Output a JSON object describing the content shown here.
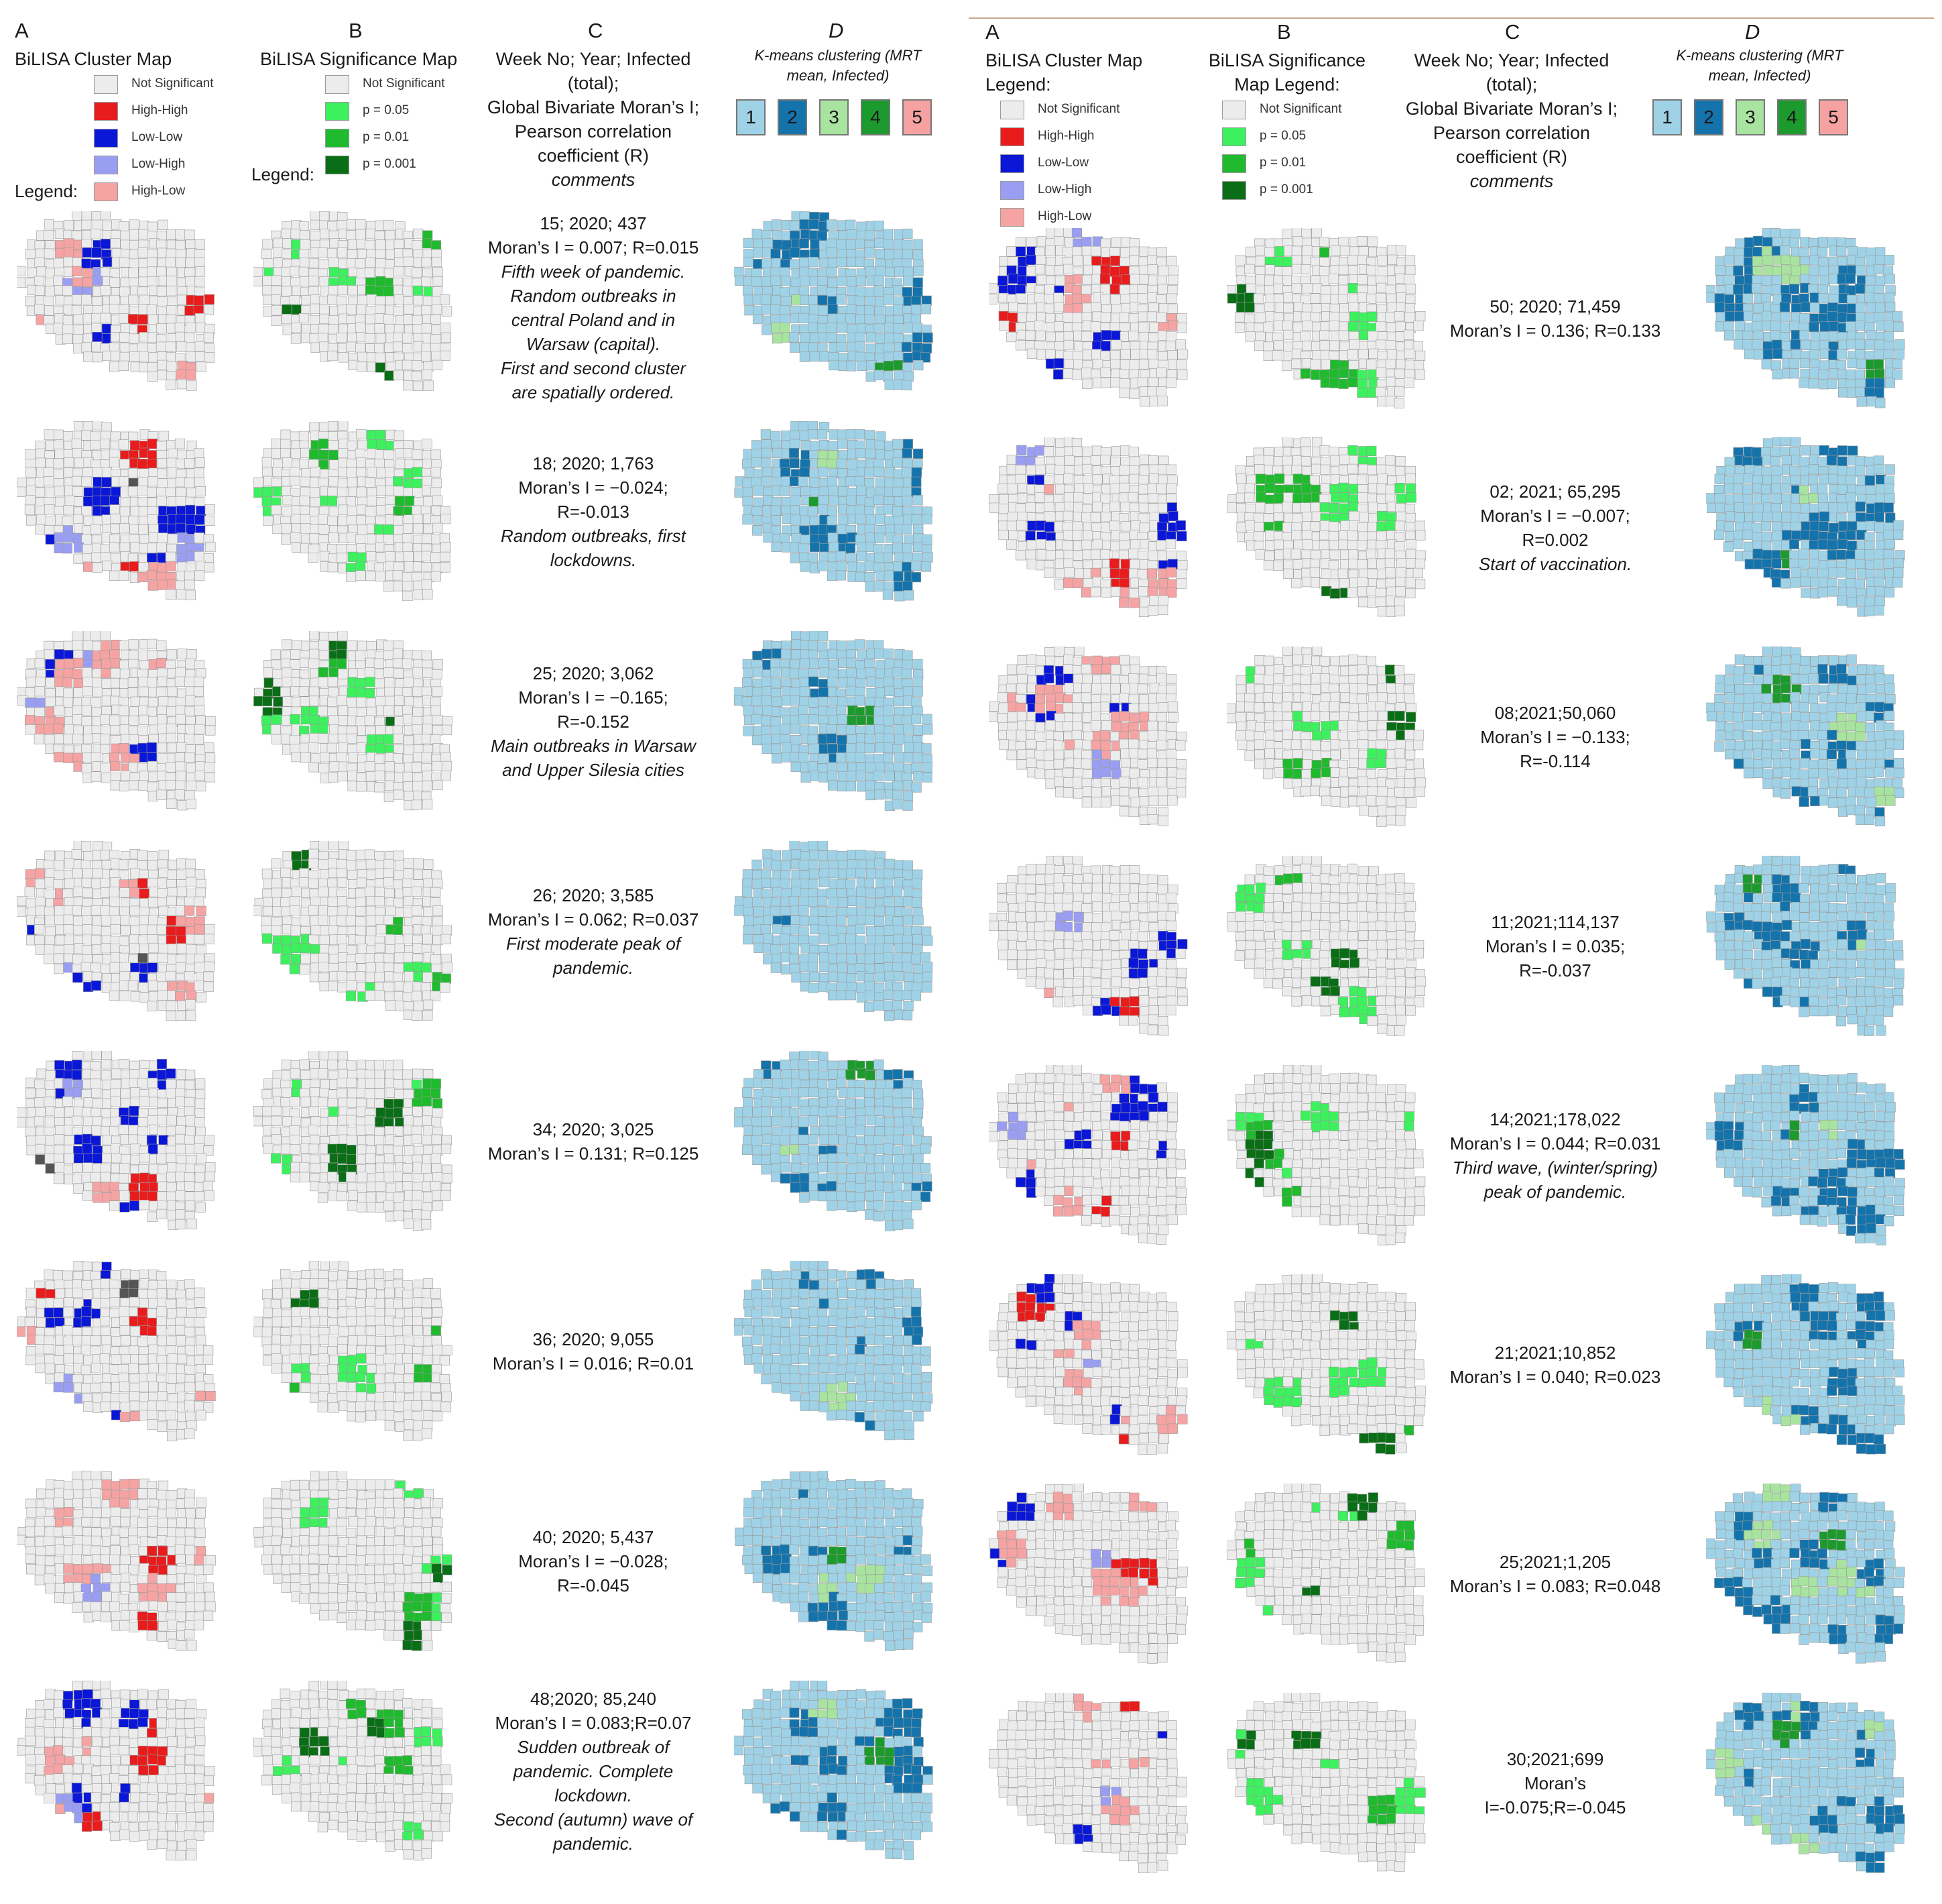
{
  "colors": {
    "not_significant": "#ececec",
    "high_high": "#e81c1c",
    "low_low": "#0b17d6",
    "low_high": "#9a9ef2",
    "high_low": "#f5a3a3",
    "p005": "#3df05e",
    "p001": "#1fba2d",
    "p0001": "#0a6e17",
    "k1": "#9fd2e6",
    "k2": "#1573ab",
    "k3": "#a9e3a0",
    "k4": "#1d9a2e",
    "k5": "#f6a2a2",
    "border": "#9a9a9a",
    "rule": "#c9a88e"
  },
  "left": {
    "headers": {
      "a_letter": "A",
      "a_title": "BiLISA Cluster Map",
      "b_letter": "B",
      "b_title": "BiLISA Significance Map",
      "c_letter": "C",
      "c_title": [
        "Week No; Year; Infected",
        "(total);",
        "Global Bivariate Moran’s I;",
        "Pearson correlation",
        "coefficient (R)"
      ],
      "c_comments": "comments",
      "d_letter": "D",
      "d_title": [
        "K-means clustering (MRT",
        "mean, Infected)"
      ]
    },
    "legend_a_label": "Legend:",
    "legend_b_label": "Legend:"
  },
  "right": {
    "headers": {
      "a_letter": "A",
      "a_title": [
        "BiLISA Cluster Map",
        "Legend:"
      ],
      "b_letter": "B",
      "b_title": [
        "BiLISA Significance",
        "Map Legend:"
      ],
      "c_letter": "C",
      "c_title": [
        "Week No; Year; Infected",
        "(total);",
        "Global Bivariate Moran’s I;",
        "Pearson correlation",
        "coefficient (R)"
      ],
      "c_comments": "comments",
      "d_letter": "D",
      "d_title": [
        "K-means clustering (MRT",
        "mean, Infected)"
      ]
    }
  },
  "legend_cluster": [
    "Not Significant",
    "High-High",
    "Low-Low",
    "Low-High",
    "High-Low"
  ],
  "legend_significance": [
    "Not Significant",
    "p = 0.05",
    "p = 0.01",
    "p = 0.001"
  ],
  "kmeans_labels": [
    "1",
    "2",
    "3",
    "4",
    "5"
  ],
  "rows_left": [
    {
      "lines": [
        "15; 2020; 437",
        "Moran’s I = 0.007; R=0.015"
      ],
      "comment": [
        "Fifth week of pandemic.",
        "Random outbreaks in",
        "central Poland and in",
        "Warsaw (capital).",
        "First and second cluster",
        "are spatially ordered."
      ],
      "a_mix": {
        "high_high": 0.06,
        "low_low": 0.05,
        "low_high": 0.03,
        "high_low": 0.12,
        "gray": 0.0
      },
      "b_mix": {
        "p005": 0.12,
        "p001": 0.06,
        "p0001": 0.05
      },
      "d_mix": {
        "k2": 0.22,
        "k3": 0.05,
        "k4": 0.03,
        "k5": 0.01
      }
    },
    {
      "lines": [
        "18; 2020; 1,763",
        "Moran’s I = −0.024;",
        "R=-0.013"
      ],
      "comment": [
        "Random outbreaks, first",
        "lockdowns."
      ],
      "a_mix": {
        "high_high": 0.04,
        "low_low": 0.12,
        "low_high": 0.05,
        "high_low": 0.1,
        "gray": 0.02
      },
      "b_mix": {
        "p005": 0.18,
        "p001": 0.08,
        "p0001": 0.03
      },
      "d_mix": {
        "k2": 0.22,
        "k3": 0.04,
        "k4": 0.02,
        "k5": 0.01
      }
    },
    {
      "lines": [
        "25; 2020; 3,062",
        "Moran’s I = −0.165;",
        "R=-0.152"
      ],
      "comment": [
        "Main outbreaks in Warsaw",
        "and Upper Silesia cities"
      ],
      "a_mix": {
        "high_high": 0.01,
        "low_low": 0.05,
        "low_high": 0.06,
        "high_low": 0.18,
        "gray": 0.0
      },
      "b_mix": {
        "p005": 0.12,
        "p001": 0.06,
        "p0001": 0.1
      },
      "d_mix": {
        "k2": 0.07,
        "k3": 0.01,
        "k4": 0.02,
        "k5": 0.0
      }
    },
    {
      "lines": [
        "26; 2020; 3,585",
        "Moran’s I = 0.062; R=0.037"
      ],
      "comment": [
        "First moderate peak of",
        "pandemic."
      ],
      "a_mix": {
        "high_high": 0.05,
        "low_low": 0.16,
        "low_high": 0.02,
        "high_low": 0.12,
        "gray": 0.03
      },
      "b_mix": {
        "p005": 0.18,
        "p001": 0.07,
        "p0001": 0.06
      },
      "d_mix": {
        "k2": 0.06,
        "k3": 0.01,
        "k4": 0.01,
        "k5": 0.01
      }
    },
    {
      "lines": [
        "34; 2020; 3,025",
        "Moran’s I = 0.131; R=0.125"
      ],
      "comment": [],
      "a_mix": {
        "high_high": 0.06,
        "low_low": 0.2,
        "low_high": 0.04,
        "high_low": 0.02,
        "gray": 0.02
      },
      "b_mix": {
        "p005": 0.16,
        "p001": 0.06,
        "p0001": 0.04
      },
      "d_mix": {
        "k2": 0.18,
        "k3": 0.03,
        "k4": 0.03,
        "k5": 0.01
      }
    },
    {
      "lines": [
        "36; 2020; 9,055",
        "Moran’s I = 0.016; R=0.01"
      ],
      "comment": [],
      "a_mix": {
        "high_high": 0.08,
        "low_low": 0.12,
        "low_high": 0.05,
        "high_low": 0.08,
        "gray": 0.03
      },
      "b_mix": {
        "p005": 0.15,
        "p001": 0.08,
        "p0001": 0.06
      },
      "d_mix": {
        "k2": 0.16,
        "k3": 0.03,
        "k4": 0.02,
        "k5": 0.01
      }
    },
    {
      "lines": [
        "40; 2020; 5,437",
        "Moran’s I = −0.028;",
        "R=-0.045"
      ],
      "comment": [],
      "a_mix": {
        "high_high": 0.05,
        "low_low": 0.0,
        "low_high": 0.06,
        "high_low": 0.14,
        "gray": 0.03
      },
      "b_mix": {
        "p005": 0.14,
        "p001": 0.05,
        "p0001": 0.06
      },
      "d_mix": {
        "k2": 0.2,
        "k3": 0.04,
        "k4": 0.02,
        "k5": 0.01
      }
    },
    {
      "lines": [
        "48;2020; 85,240",
        "Moran’s I = 0.083;R=0.07"
      ],
      "comment": [
        "Sudden outbreak of",
        "pandemic. Complete",
        "lockdown.",
        "Second (autumn) wave of",
        "pandemic."
      ],
      "a_mix": {
        "high_high": 0.07,
        "low_low": 0.12,
        "low_high": 0.03,
        "high_low": 0.1,
        "gray": 0.0
      },
      "b_mix": {
        "p005": 0.14,
        "p001": 0.08,
        "p0001": 0.05
      },
      "d_mix": {
        "k2": 0.4,
        "k3": 0.06,
        "k4": 0.03,
        "k5": 0.01
      }
    }
  ],
  "rows_right": [
    {
      "lines": [
        "50; 2020; 71,459",
        "Moran’s I = 0.136; R=0.133"
      ],
      "comment": [],
      "a_mix": {
        "high_high": 0.07,
        "low_low": 0.16,
        "low_high": 0.03,
        "high_low": 0.1,
        "gray": 0.0
      },
      "b_mix": {
        "p005": 0.18,
        "p001": 0.08,
        "p0001": 0.04
      },
      "d_mix": {
        "k2": 0.36,
        "k3": 0.04,
        "k4": 0.04,
        "k5": 0.01
      }
    },
    {
      "lines": [
        "02; 2021; 65,295",
        "Moran’s I = −0.007;",
        "R=0.002"
      ],
      "comment": [
        "Start of vaccination."
      ],
      "a_mix": {
        "high_high": 0.05,
        "low_low": 0.13,
        "low_high": 0.04,
        "high_low": 0.12,
        "gray": 0.0
      },
      "b_mix": {
        "p005": 0.18,
        "p001": 0.08,
        "p0001": 0.03
      },
      "d_mix": {
        "k2": 0.34,
        "k3": 0.03,
        "k4": 0.02,
        "k5": 0.01
      }
    },
    {
      "lines": [
        "08;2021;50,060",
        "Moran’s I = −0.133;",
        "R=-0.114"
      ],
      "comment": [],
      "a_mix": {
        "high_high": 0.01,
        "low_low": 0.1,
        "low_high": 0.05,
        "high_low": 0.14,
        "gray": 0.0
      },
      "b_mix": {
        "p005": 0.15,
        "p001": 0.06,
        "p0001": 0.05
      },
      "d_mix": {
        "k2": 0.32,
        "k3": 0.04,
        "k4": 0.02,
        "k5": 0.01
      }
    },
    {
      "lines": [
        "11;2021;114,137",
        "Moran’s I = 0.035;",
        "R=-0.037"
      ],
      "comment": [],
      "a_mix": {
        "high_high": 0.03,
        "low_low": 0.12,
        "low_high": 0.03,
        "high_low": 0.06,
        "gray": 0.0
      },
      "b_mix": {
        "p005": 0.14,
        "p001": 0.06,
        "p0001": 0.05
      },
      "d_mix": {
        "k2": 0.3,
        "k3": 0.03,
        "k4": 0.03,
        "k5": 0.01
      }
    },
    {
      "lines": [
        "14;2021;178,022",
        "Moran’s I = 0.044; R=0.031"
      ],
      "comment": [
        "Third wave, (winter/spring)",
        "peak of pandemic."
      ],
      "a_mix": {
        "high_high": 0.04,
        "low_low": 0.14,
        "low_high": 0.03,
        "high_low": 0.12,
        "gray": 0.0
      },
      "b_mix": {
        "p005": 0.18,
        "p001": 0.08,
        "p0001": 0.06
      },
      "d_mix": {
        "k2": 0.3,
        "k3": 0.03,
        "k4": 0.03,
        "k5": 0.01
      }
    },
    {
      "lines": [
        "21;2021;10,852",
        "Moran’s I = 0.040; R=0.023"
      ],
      "comment": [],
      "a_mix": {
        "high_high": 0.05,
        "low_low": 0.1,
        "low_high": 0.02,
        "high_low": 0.14,
        "gray": 0.0
      },
      "b_mix": {
        "p005": 0.16,
        "p001": 0.08,
        "p0001": 0.05
      },
      "d_mix": {
        "k2": 0.34,
        "k3": 0.05,
        "k4": 0.03,
        "k5": 0.01
      }
    },
    {
      "lines": [
        "25;2021;1,205",
        "Moran’s I = 0.083; R=0.048"
      ],
      "comment": [],
      "a_mix": {
        "high_high": 0.04,
        "low_low": 0.08,
        "low_high": 0.02,
        "high_low": 0.14,
        "gray": 0.0
      },
      "b_mix": {
        "p005": 0.14,
        "p001": 0.06,
        "p0001": 0.04
      },
      "d_mix": {
        "k2": 0.38,
        "k3": 0.14,
        "k4": 0.03,
        "k5": 0.01
      }
    },
    {
      "lines": [
        "30;2021;699",
        "Moran’s",
        "I=-0.075;R=-0.045"
      ],
      "comment": [],
      "a_mix": {
        "high_high": 0.02,
        "low_low": 0.06,
        "low_high": 0.04,
        "high_low": 0.12,
        "gray": 0.0
      },
      "b_mix": {
        "p005": 0.14,
        "p001": 0.06,
        "p0001": 0.06
      },
      "d_mix": {
        "k2": 0.36,
        "k3": 0.14,
        "k4": 0.03,
        "k5": 0.01
      }
    }
  ]
}
